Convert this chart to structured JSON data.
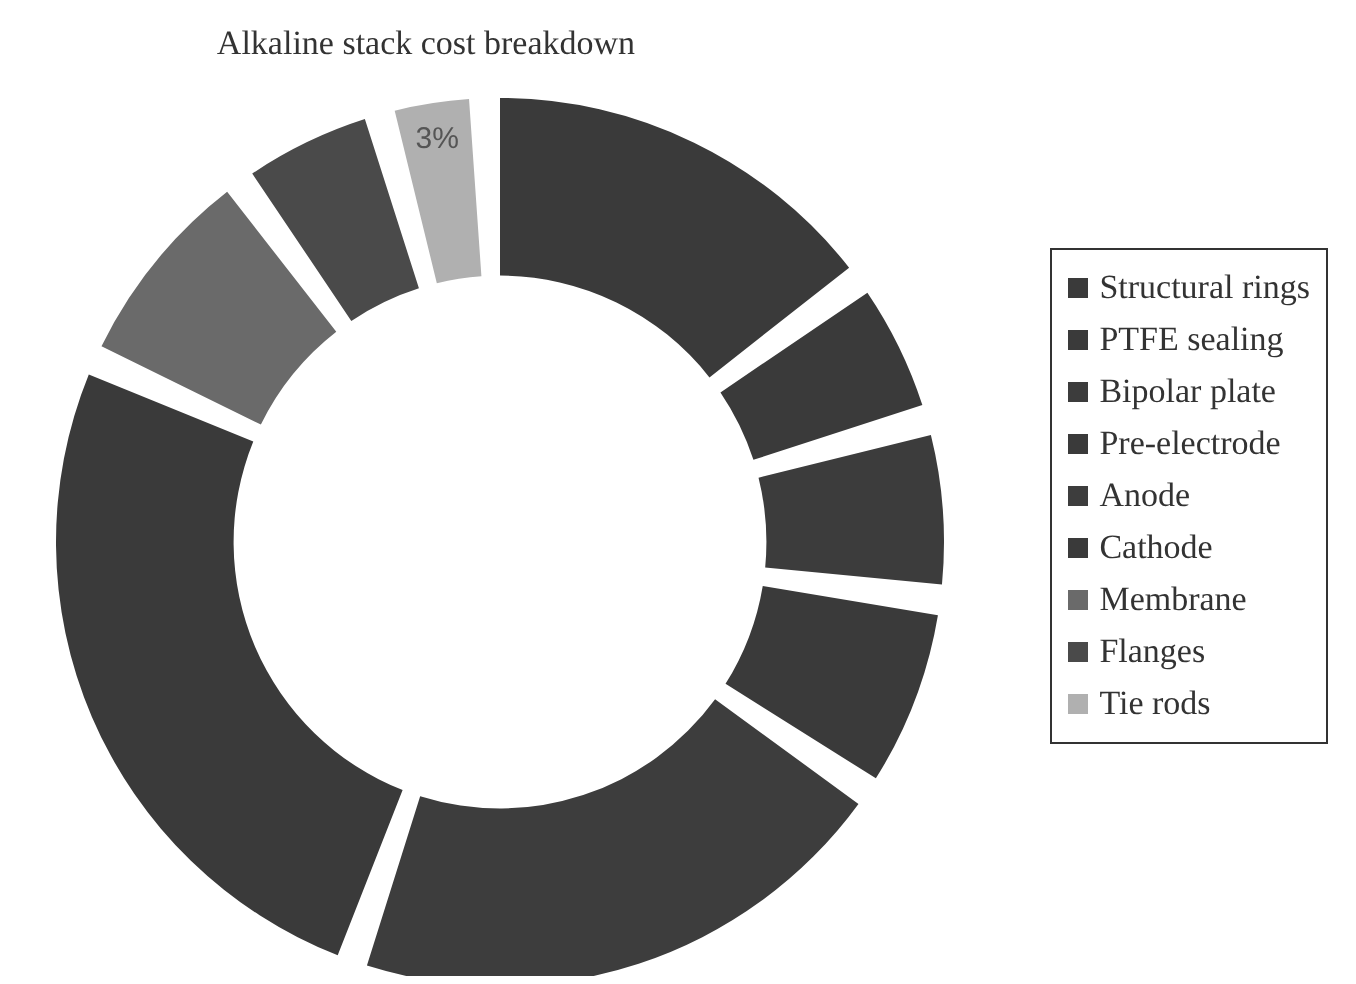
{
  "chart_data": {
    "type": "donut",
    "title": "Alkaline stack cost breakdown",
    "categories": [
      "Structural rings",
      "PTFE sealing",
      "Bipolar plate",
      "Pre-electrode",
      "Anode",
      "Cathode",
      "Membrane",
      "Flanges",
      "Tie rods"
    ],
    "values": [
      16,
      5,
      6,
      7,
      22,
      28,
      8,
      5,
      3
    ],
    "colors": [
      "#3a3a3a",
      "#3a3a3a",
      "#3c3c3c",
      "#3a3a3a",
      "#3d3d3d",
      "#3a3a3a",
      "#6a6a6a",
      "#4a4a4a",
      "#b0b0b0"
    ],
    "value_labels": [
      null,
      null,
      null,
      null,
      null,
      null,
      null,
      null,
      "3%"
    ],
    "legend": "right"
  }
}
